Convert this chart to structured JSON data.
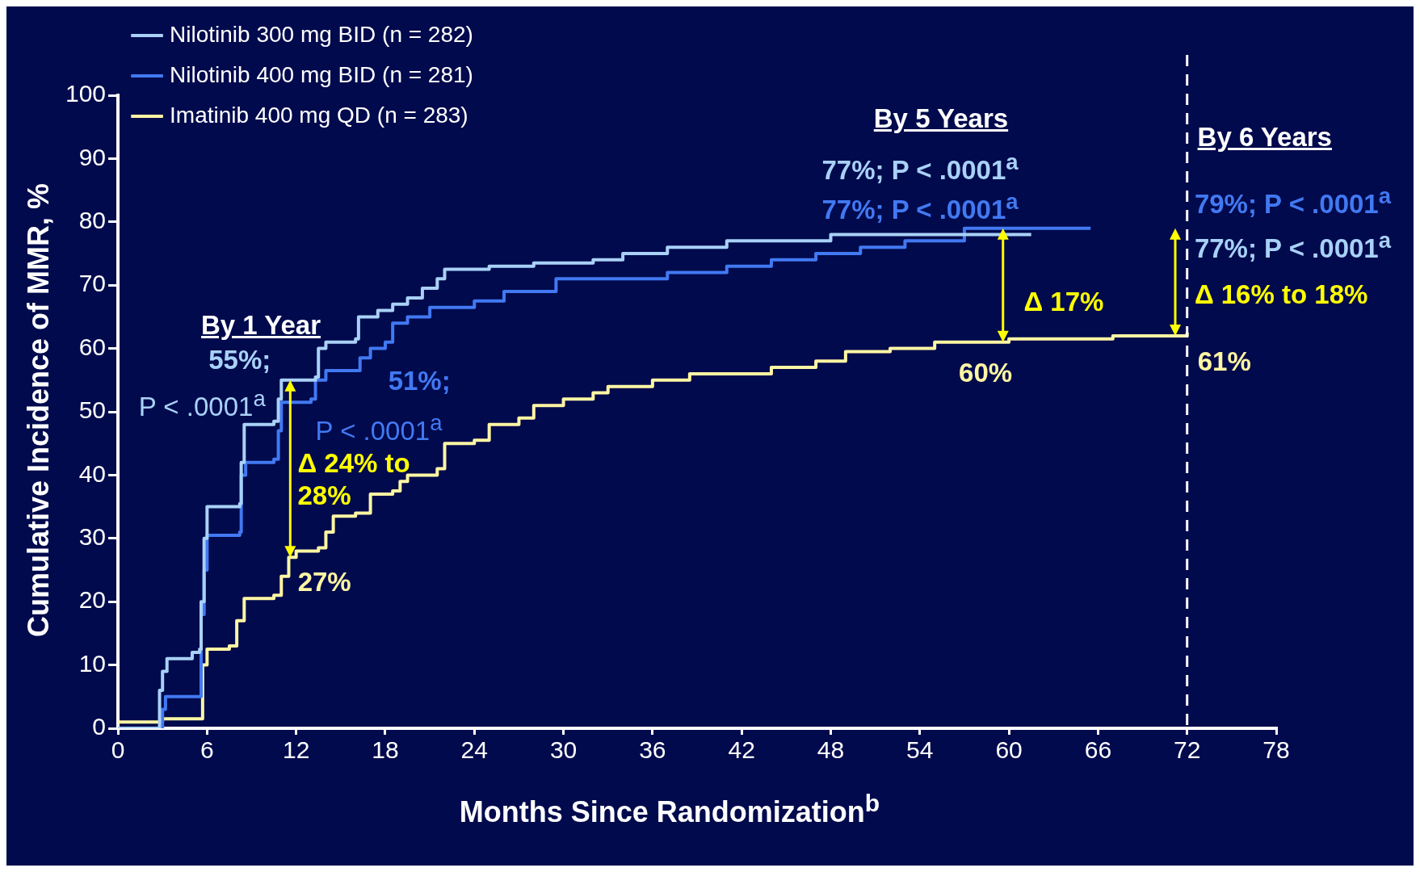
{
  "chart_data": {
    "type": "step",
    "xlabel": "Months Since Randomization$^{b}$",
    "ylabel": "Cumulative Incidence of MMR, %",
    "xlim": [
      0,
      78
    ],
    "xticks": [
      0,
      6,
      12,
      18,
      24,
      30,
      36,
      42,
      48,
      54,
      60,
      66,
      72,
      78
    ],
    "ylim": [
      0,
      100
    ],
    "yticks": [
      0,
      10,
      20,
      30,
      40,
      50,
      60,
      70,
      80,
      90,
      100
    ],
    "grid": false,
    "legend": "top left",
    "marker": "none",
    "line_style": "solid",
    "series": [
      {
        "name": "Nilotinib 300 mg BID (n = 282)",
        "color": "#a9d1f7",
        "x": [
          0,
          2.7,
          2.8,
          3,
          3.3,
          5,
          5.5,
          5.6,
          5.8,
          6,
          8.2,
          8.3,
          8.5,
          10.5,
          10.8,
          11,
          13.3,
          13.5,
          14,
          16,
          16.2,
          17.5,
          18.5,
          19.5,
          20.5,
          21.5,
          22,
          25,
          28,
          32,
          34,
          37,
          41,
          48,
          57,
          61.5
        ],
        "values": [
          0,
          0,
          6,
          9,
          11,
          12,
          12.5,
          20,
          30,
          35,
          35.5,
          42,
          48,
          48.5,
          52,
          55,
          55.5,
          60,
          61,
          61.5,
          65,
          66,
          67,
          68,
          69.5,
          71,
          72.5,
          73,
          73.5,
          74,
          75,
          76,
          77,
          78,
          78,
          78
        ]
      },
      {
        "name": "Nilotinib 400 mg BID (n = 281)",
        "color": "#4279f2",
        "x": [
          0,
          2.8,
          3,
          3.2,
          5.5,
          5.6,
          5.8,
          6,
          8.2,
          8.3,
          8.6,
          10.5,
          10.8,
          11,
          13,
          13.3,
          14,
          16.3,
          17,
          18,
          18.5,
          19.5,
          21,
          24,
          26,
          29.5,
          37,
          41,
          44,
          47,
          50,
          53,
          57,
          65.5
        ],
        "values": [
          0,
          0,
          3,
          5,
          5,
          18,
          25,
          30.5,
          31,
          40,
          42,
          42.5,
          47,
          51.5,
          52,
          55,
          56.5,
          58.5,
          60,
          61,
          64,
          65,
          66.5,
          67.5,
          69,
          71,
          72,
          73,
          74,
          75,
          76,
          77,
          79,
          79
        ]
      },
      {
        "name": "Imatinib 400 mg QD (n = 283)",
        "color": "#fff6a3",
        "x": [
          0,
          3,
          5.5,
          5.7,
          6,
          7.5,
          8,
          8.5,
          10.5,
          11,
          11.5,
          12,
          13.5,
          14,
          14.5,
          16,
          17,
          18.5,
          19,
          19.5,
          21.5,
          22,
          24,
          25,
          27,
          28,
          30,
          32,
          33,
          36,
          38.5,
          44,
          47,
          49,
          52,
          55,
          60,
          67,
          72
        ],
        "values": [
          1,
          1.5,
          1.5,
          10,
          12.5,
          13,
          17,
          20.5,
          21,
          24,
          27,
          28,
          28.5,
          31,
          33.5,
          34,
          37,
          37.5,
          39,
          40,
          41,
          45,
          45.5,
          48,
          49,
          51,
          52,
          53,
          54,
          55,
          56,
          57,
          58,
          59.5,
          60,
          61,
          61.5,
          62,
          62.5
        ]
      }
    ],
    "ref_lines": [
      {
        "axis": "x",
        "value": 72,
        "color": "#ffffff",
        "line_style": "dashed"
      }
    ],
    "annotations": [
      "By 1 Year",
      "55%;",
      "P < .0001$^{a}$",
      "51%;",
      "P < .0001$^{a}$",
      {
        "text": "Δ 24% to\n28%",
        "x": 11.6,
        "y": 27
      },
      {
        "text": "27%",
        "x": 12,
        "y": 28
      },
      "By 5 Years",
      "77%; P < .0001$^{a}$",
      "77%; P < .0001$^{a}$",
      {
        "text": "Δ 17%",
        "x": 59.6,
        "y": 61
      },
      {
        "text": "60%",
        "x": 60,
        "y": 61.5
      },
      "By 6 Years",
      "79%; P < .0001$^{a}$",
      "77%; P < .0001$^{a}$",
      {
        "text": "Δ 16% to 18%",
        "x": 71.2,
        "y": 62
      },
      {
        "text": "61%",
        "x": 72,
        "y": 62.5
      }
    ]
  }
}
